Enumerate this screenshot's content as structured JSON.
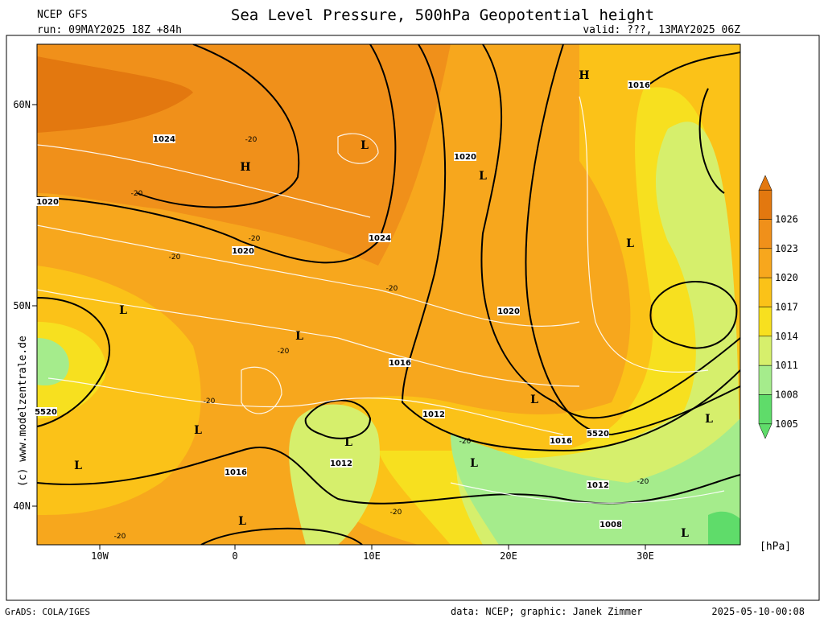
{
  "header": {
    "model": "NCEP GFS",
    "run": "run: 09MAY2025 18Z +84h",
    "title": "Sea Level Pressure, 500hPa Geopotential height",
    "valid": "valid: ???, 13MAY2025 06Z"
  },
  "map": {
    "lat_labels": [
      "60N",
      "50N",
      "40N"
    ],
    "lon_labels": [
      "10W",
      "0",
      "10E",
      "20E",
      "30E"
    ],
    "watermark": "(c) www.modelzentrale.de",
    "centers": [
      "H",
      "H",
      "L",
      "L",
      "L",
      "L",
      "L",
      "L",
      "L",
      "L",
      "L",
      "L",
      "L",
      "L",
      "L"
    ],
    "isobar_labels": [
      "1024",
      "1020",
      "1016",
      "1020",
      "1024",
      "1020",
      "1020",
      "1016",
      "1012",
      "1016",
      "5520",
      "5520",
      "1012",
      "1016",
      "1012",
      "1008"
    ],
    "temp_labels": [
      "-20",
      "-20",
      "-20",
      "-20",
      "-20",
      "-20",
      "-20",
      "-20",
      "-20",
      "-20",
      "-20"
    ]
  },
  "colorbar": {
    "levels": [
      1026,
      1023,
      1020,
      1017,
      1014,
      1011,
      1008,
      1005
    ],
    "colors": [
      "#e3780f",
      "#f0901a",
      "#f7a71d",
      "#fbc218",
      "#f7e01f",
      "#d6ef6c",
      "#a5ec8c",
      "#5fdc6a"
    ],
    "unit": "[hPa]"
  },
  "footer": {
    "software": "GrADS: COLA/IGES",
    "credit": "data: NCEP; graphic: Janek Zimmer",
    "timestamp": "2025-05-10-00:08"
  }
}
